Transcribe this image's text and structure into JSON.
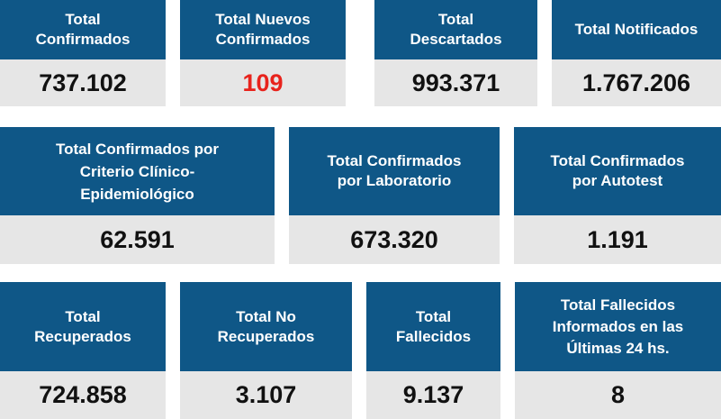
{
  "colors": {
    "header_bg": "#0f5787",
    "header_text": "#ffffff",
    "value_bg": "#e6e6e6",
    "value_text": "#111111",
    "alert_value": "#e8231c"
  },
  "rows": [
    {
      "cards": [
        {
          "title": [
            "Total",
            "Confirmados"
          ],
          "value": "737.102"
        },
        {
          "title": [
            "Total Nuevos",
            "Confirmados"
          ],
          "value": "109"
        },
        {
          "title": [
            "Total",
            "Descartados"
          ],
          "value": "993.371"
        },
        {
          "title": [
            "Total Notificados"
          ],
          "value": "1.767.206"
        }
      ]
    },
    {
      "cards": [
        {
          "title": [
            "Total Confirmados por",
            "Criterio Clínico-",
            "Epidemiológico"
          ],
          "value": "62.591"
        },
        {
          "title": [
            "Total Confirmados",
            "por Laboratorio"
          ],
          "value": "673.320"
        },
        {
          "title": [
            "Total Confirmados",
            "por Autotest"
          ],
          "value": "1.191"
        }
      ]
    },
    {
      "cards": [
        {
          "title": [
            "Total",
            "Recuperados"
          ],
          "value": "724.858"
        },
        {
          "title": [
            "Total No",
            "Recuperados"
          ],
          "value": "3.107"
        },
        {
          "title": [
            "Total",
            "Fallecidos"
          ],
          "value": "9.137"
        },
        {
          "title": [
            "Total Fallecidos",
            "Informados en las",
            "Últimas 24 hs."
          ],
          "value": "8"
        }
      ]
    }
  ]
}
